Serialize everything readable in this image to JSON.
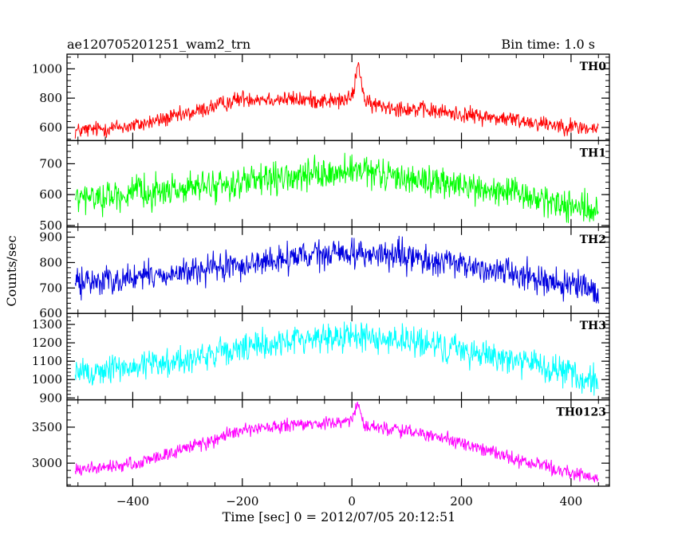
{
  "chart_data": {
    "type": "line",
    "title": "ae120705201251_wam2_trn",
    "subtitle": "Bin time: 1.0 s",
    "xlabel": "Time [sec] 0 = 2012/07/05 20:12:51",
    "ylabel": "Counts/sec",
    "xlim": [
      -520,
      470
    ],
    "x_ticks": [
      -400,
      -200,
      0,
      200,
      400
    ],
    "x_tick_labels": [
      "−400",
      "−200",
      "0",
      "200",
      "400"
    ],
    "x_range": [
      -505,
      450
    ],
    "grid": false,
    "panels": [
      {
        "name": "TH0",
        "color": "#ff0000",
        "ylim": [
          510,
          1100
        ],
        "y_ticks": [
          600,
          800,
          1000
        ],
        "y_tick_labels": [
          "600",
          "800",
          "1000"
        ],
        "profile_x": [
          -505,
          -400,
          -300,
          -200,
          -100,
          -20,
          0,
          8,
          12,
          18,
          25,
          100,
          200,
          300,
          450
        ],
        "profile_y": [
          575,
          610,
          690,
          800,
          790,
          780,
          800,
          960,
          1040,
          900,
          760,
          730,
          690,
          650,
          585
        ],
        "noise": 45
      },
      {
        "name": "TH1",
        "color": "#00ff00",
        "ylim": [
          495,
          775
        ],
        "y_ticks": [
          500,
          600,
          700
        ],
        "y_tick_labels": [
          "500",
          "600",
          "700"
        ],
        "profile_x": [
          -505,
          -300,
          -100,
          0,
          100,
          300,
          450
        ],
        "profile_y": [
          585,
          620,
          655,
          675,
          655,
          600,
          545
        ],
        "noise": 40
      },
      {
        "name": "TH2",
        "color": "#0000e0",
        "ylim": [
          600,
          940
        ],
        "y_ticks": [
          600,
          700,
          800,
          900
        ],
        "y_tick_labels": [
          "600",
          "700",
          "800",
          "900"
        ],
        "profile_x": [
          -505,
          -300,
          -100,
          0,
          100,
          300,
          450
        ],
        "profile_y": [
          720,
          760,
          820,
          840,
          820,
          760,
          680
        ],
        "noise": 45
      },
      {
        "name": "TH3",
        "color": "#00ffff",
        "ylim": [
          890,
          1360
        ],
        "y_ticks": [
          900,
          1000,
          1100,
          1200,
          1300
        ],
        "y_tick_labels": [
          "900",
          "1000",
          "1100",
          "1200",
          "1300"
        ],
        "profile_x": [
          -505,
          -300,
          -100,
          0,
          100,
          300,
          450
        ],
        "profile_y": [
          1030,
          1110,
          1220,
          1240,
          1210,
          1110,
          980
        ],
        "noise": 65
      },
      {
        "name": "TH0123",
        "color": "#ff00ff",
        "ylim": [
          2680,
          3880
        ],
        "y_ticks": [
          3000,
          3500
        ],
        "y_tick_labels": [
          "3000",
          "3500"
        ],
        "profile_x": [
          -505,
          -400,
          -200,
          -100,
          -20,
          0,
          8,
          12,
          18,
          25,
          100,
          200,
          300,
          450
        ],
        "profile_y": [
          2900,
          2980,
          3450,
          3530,
          3560,
          3600,
          3760,
          3820,
          3650,
          3520,
          3450,
          3280,
          3050,
          2780
        ],
        "noise": 75
      }
    ]
  }
}
